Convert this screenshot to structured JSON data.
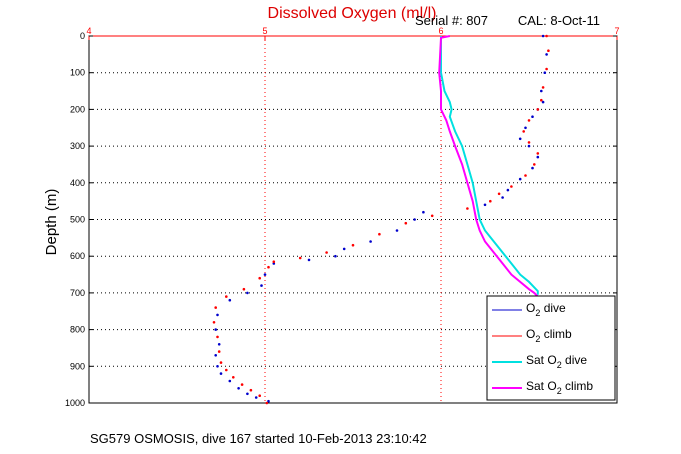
{
  "header": {
    "serial": "Serial #: 807",
    "cal": "CAL: 8-Oct-11"
  },
  "footer": {
    "caption": "SG579 OSMOSIS, dive 167 started 10-Feb-2013 23:10:42"
  },
  "chart_data": {
    "type": "scatter",
    "title": "Dissolved Oxygen (ml/l)",
    "xlabel": "",
    "ylabel": "Depth (m)",
    "xlim": [
      4,
      7
    ],
    "ylim": [
      1000,
      0
    ],
    "y_reversed": true,
    "x_axis_position": "top",
    "grid": true,
    "legend_position": "bottom-right",
    "x_ticks": [
      "4",
      "5",
      "6",
      "7"
    ],
    "y_ticks": [
      "0",
      "100",
      "200",
      "300",
      "400",
      "500",
      "600",
      "700",
      "800",
      "900",
      "1000"
    ],
    "series": [
      {
        "name": "O2 dive",
        "name_main": "O",
        "name_sub": "2",
        "name_rest": " dive",
        "color": "#0000cc",
        "style": "dots",
        "x": [
          6.58,
          6.6,
          6.59,
          6.57,
          6.58,
          6.55,
          6.52,
          6.48,
          6.45,
          6.5,
          6.55,
          6.52,
          6.45,
          6.38,
          6.35,
          6.25,
          5.9,
          5.85,
          5.75,
          5.6,
          5.45,
          5.4,
          5.25,
          5.05,
          5.0,
          4.98,
          4.9,
          4.8,
          4.73,
          4.72,
          4.74,
          4.72,
          4.73,
          4.75,
          4.8,
          4.85,
          4.9,
          4.95,
          5.02
        ],
        "y": [
          0,
          50,
          100,
          150,
          180,
          200,
          220,
          250,
          280,
          300,
          330,
          360,
          390,
          420,
          440,
          460,
          480,
          500,
          530,
          560,
          580,
          600,
          610,
          620,
          650,
          680,
          700,
          720,
          760,
          800,
          840,
          870,
          900,
          920,
          940,
          960,
          975,
          985,
          995
        ]
      },
      {
        "name": "O2 climb",
        "name_main": "O",
        "name_sub": "2",
        "name_rest": " climb",
        "color": "#ff0000",
        "style": "dots",
        "x": [
          6.6,
          6.61,
          6.6,
          6.58,
          6.57,
          6.55,
          6.5,
          6.47,
          6.5,
          6.55,
          6.53,
          6.48,
          6.4,
          6.33,
          6.28,
          6.15,
          5.95,
          5.8,
          5.65,
          5.5,
          5.35,
          5.2,
          5.05,
          5.02,
          4.97,
          4.88,
          4.78,
          4.72,
          4.71,
          4.73,
          4.74,
          4.75,
          4.78,
          4.82,
          4.87,
          4.92,
          4.97,
          5.01
        ],
        "y": [
          0,
          40,
          90,
          140,
          175,
          200,
          230,
          260,
          290,
          320,
          350,
          380,
          410,
          430,
          450,
          470,
          490,
          510,
          540,
          570,
          590,
          605,
          615,
          630,
          660,
          690,
          710,
          740,
          780,
          820,
          860,
          890,
          910,
          930,
          950,
          965,
          980,
          1000
        ]
      },
      {
        "name": "Sat O2 dive",
        "name_main": "Sat O",
        "name_sub": "2",
        "name_rest": " dive",
        "color": "#00e0e0",
        "style": "line",
        "x": [
          6.0,
          6.0,
          6.02,
          6.05,
          6.06,
          6.05,
          6.08,
          6.12,
          6.15,
          6.18,
          6.2,
          6.22,
          6.25,
          6.3,
          6.35,
          6.4,
          6.45,
          6.5,
          6.52,
          6.55,
          6.55
        ],
        "y": [
          0,
          100,
          150,
          180,
          200,
          220,
          260,
          300,
          350,
          400,
          450,
          500,
          530,
          560,
          590,
          620,
          650,
          670,
          680,
          695,
          705
        ]
      },
      {
        "name": "Sat O2 climb",
        "name_main": "Sat O",
        "name_sub": "2",
        "name_rest": " climb",
        "color": "#ff00ff",
        "style": "line",
        "x": [
          6.05,
          6.0,
          5.99,
          6.0,
          6.0,
          6.03,
          6.05,
          6.08,
          6.12,
          6.15,
          6.18,
          6.2,
          6.22,
          6.25,
          6.3,
          6.35,
          6.4,
          6.45,
          6.5,
          6.53,
          6.55
        ],
        "y": [
          0,
          5,
          100,
          150,
          200,
          230,
          260,
          300,
          350,
          400,
          450,
          500,
          530,
          560,
          590,
          620,
          650,
          670,
          690,
          700,
          710
        ]
      }
    ]
  }
}
